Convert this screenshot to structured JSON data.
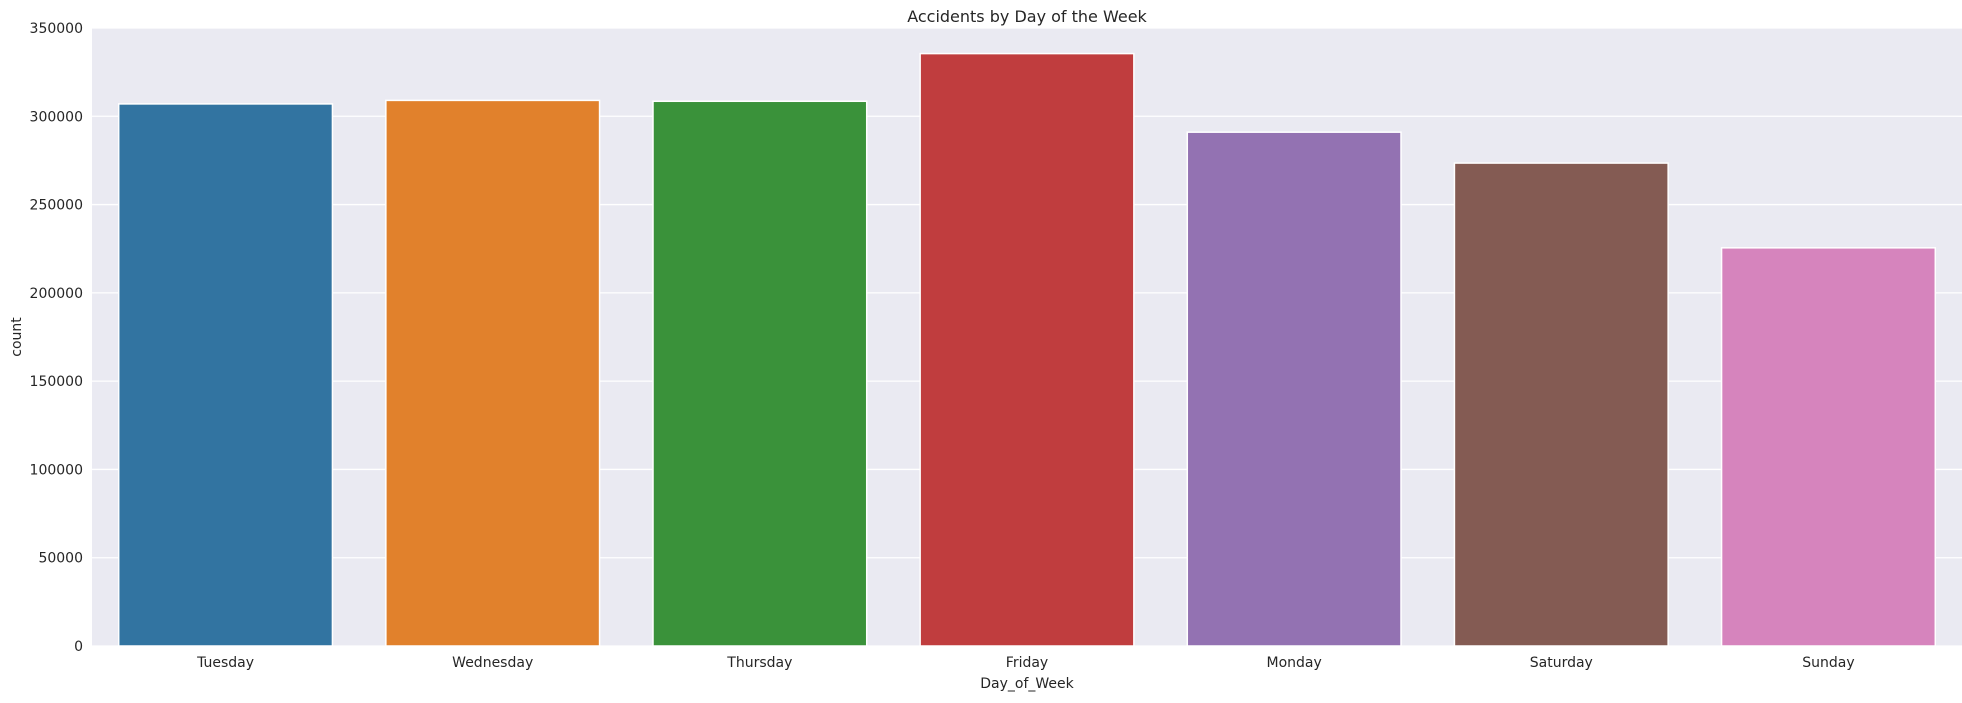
{
  "chart_data": {
    "type": "bar",
    "title": "Accidents by Day of the Week",
    "xlabel": "Day_of_Week",
    "ylabel": "count",
    "categories": [
      "Tuesday",
      "Wednesday",
      "Thursday",
      "Friday",
      "Monday",
      "Saturday",
      "Sunday"
    ],
    "values": [
      307000,
      309000,
      308500,
      335500,
      291000,
      273500,
      225500
    ],
    "colors": [
      "#3274a1",
      "#e1812c",
      "#3a923a",
      "#c03d3e",
      "#9372b2",
      "#845b53",
      "#d684bd"
    ],
    "ylim": [
      0,
      350000
    ],
    "yticks": [
      0,
      50000,
      100000,
      150000,
      200000,
      250000,
      300000,
      350000
    ],
    "ytick_labels": [
      "0",
      "50000",
      "100000",
      "150000",
      "200000",
      "250000",
      "300000",
      "350000"
    ],
    "grid": true,
    "plot_background": "#eaeaf2",
    "grid_color": "#ffffff"
  }
}
